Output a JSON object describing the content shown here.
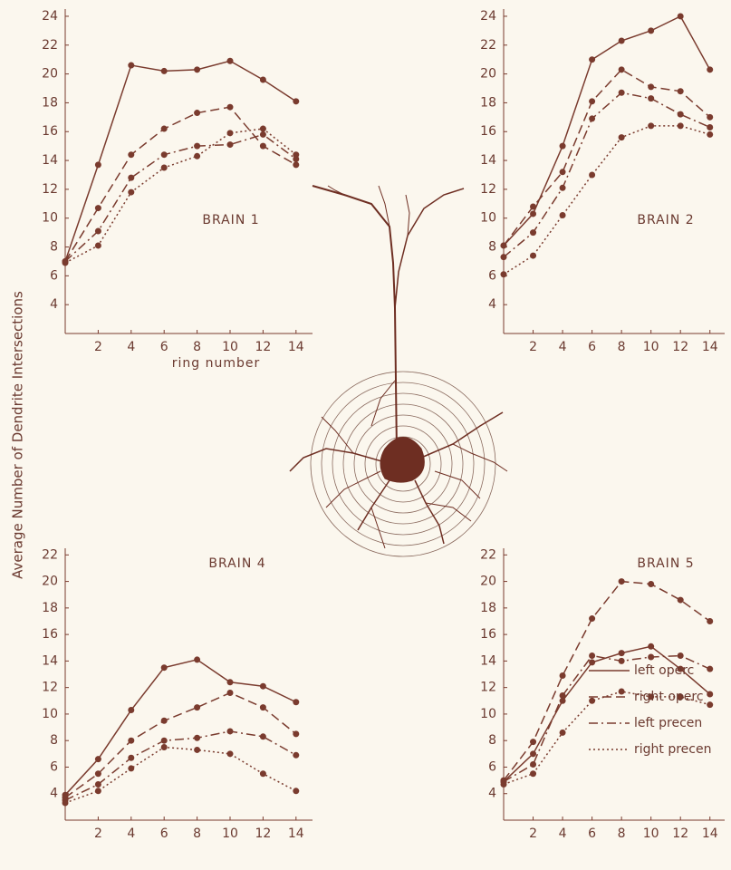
{
  "ylabel": "Average Number of Dendrite Intersections",
  "chart_data": [
    {
      "type": "line",
      "title": "BRAIN 1",
      "xlabel": "ring number",
      "x": [
        0,
        2,
        4,
        6,
        8,
        10,
        12,
        14
      ],
      "xlim": [
        0,
        15
      ],
      "xticks": [
        2,
        4,
        6,
        8,
        10,
        12,
        14
      ],
      "ylim": [
        2,
        24.5
      ],
      "yticks": [
        4,
        6,
        8,
        10,
        12,
        14,
        16,
        18,
        20,
        22,
        24
      ],
      "series": [
        {
          "name": "left operc",
          "color": "#7a3b2e",
          "dash": "solid",
          "values": [
            7,
            13.7,
            20.6,
            20.2,
            20.3,
            20.9,
            19.6,
            18.1
          ]
        },
        {
          "name": "right operc",
          "color": "#7a3b2e",
          "dash": "dashed",
          "values": [
            7,
            10.7,
            14.4,
            16.2,
            17.3,
            17.7,
            15.0,
            13.7
          ]
        },
        {
          "name": "left precen",
          "color": "#7a3b2e",
          "dash": "dashdot",
          "values": [
            7,
            9.1,
            12.8,
            14.4,
            15.0,
            15.1,
            15.8,
            14.1
          ]
        },
        {
          "name": "right precen",
          "color": "#7a3b2e",
          "dash": "dotted",
          "values": [
            6.9,
            8.1,
            11.8,
            13.5,
            14.3,
            15.9,
            16.2,
            14.4
          ]
        }
      ]
    },
    {
      "type": "line",
      "title": "BRAIN 2",
      "x": [
        0,
        2,
        4,
        6,
        8,
        10,
        12,
        14
      ],
      "xlim": [
        0,
        15
      ],
      "xticks": [
        2,
        4,
        6,
        8,
        10,
        12,
        14
      ],
      "ylim": [
        2,
        24.5
      ],
      "yticks": [
        4,
        6,
        8,
        10,
        12,
        14,
        16,
        18,
        20,
        22,
        24
      ],
      "series": [
        {
          "name": "left operc",
          "color": "#7a3b2e",
          "dash": "solid",
          "values": [
            8.1,
            10.3,
            15.0,
            21.0,
            22.3,
            23.0,
            24.0,
            20.3
          ]
        },
        {
          "name": "right operc",
          "color": "#7a3b2e",
          "dash": "dashed",
          "values": [
            8.1,
            10.8,
            13.2,
            18.1,
            20.3,
            19.1,
            18.8,
            17.0
          ]
        },
        {
          "name": "left precen",
          "color": "#7a3b2e",
          "dash": "dashdot",
          "values": [
            7.3,
            9.0,
            12.1,
            16.9,
            18.7,
            18.3,
            17.2,
            16.3
          ]
        },
        {
          "name": "right precen",
          "color": "#7a3b2e",
          "dash": "dotted",
          "values": [
            6.1,
            7.4,
            10.2,
            13.0,
            15.6,
            16.4,
            16.4,
            15.8
          ]
        }
      ]
    },
    {
      "type": "line",
      "title": "BRAIN 4",
      "x": [
        0,
        2,
        4,
        6,
        8,
        10,
        12,
        14
      ],
      "xlim": [
        0,
        15
      ],
      "xticks": [
        2,
        4,
        6,
        8,
        10,
        12,
        14
      ],
      "ylim": [
        2,
        22.5
      ],
      "yticks": [
        4,
        6,
        8,
        10,
        12,
        14,
        16,
        18,
        20,
        22
      ],
      "series": [
        {
          "name": "left operc",
          "color": "#7a3b2e",
          "dash": "solid",
          "values": [
            3.9,
            6.6,
            10.3,
            13.5,
            14.1,
            12.4,
            12.1,
            10.9
          ]
        },
        {
          "name": "right operc",
          "color": "#7a3b2e",
          "dash": "dashed",
          "values": [
            3.7,
            5.5,
            8.0,
            9.5,
            10.5,
            11.6,
            10.5,
            8.5
          ]
        },
        {
          "name": "left precen",
          "color": "#7a3b2e",
          "dash": "dashdot",
          "values": [
            3.5,
            4.7,
            6.7,
            8.0,
            8.2,
            8.7,
            8.3,
            6.9
          ]
        },
        {
          "name": "right precen",
          "color": "#7a3b2e",
          "dash": "dotted",
          "values": [
            3.3,
            4.2,
            5.9,
            7.5,
            7.3,
            7.0,
            5.5,
            4.2
          ]
        }
      ]
    },
    {
      "type": "line",
      "title": "BRAIN 5",
      "legend": "lower right",
      "x": [
        0,
        2,
        4,
        6,
        8,
        10,
        12,
        14
      ],
      "xlim": [
        0,
        15
      ],
      "xticks": [
        2,
        4,
        6,
        8,
        10,
        12,
        14
      ],
      "ylim": [
        2,
        22.5
      ],
      "yticks": [
        4,
        6,
        8,
        10,
        12,
        14,
        16,
        18,
        20,
        22
      ],
      "series": [
        {
          "name": "left operc",
          "color": "#7a3b2e",
          "dash": "solid",
          "values": [
            4.9,
            7.0,
            11.0,
            13.9,
            14.6,
            15.1,
            13.4,
            11.5
          ]
        },
        {
          "name": "right operc",
          "color": "#7a3b2e",
          "dash": "dashed",
          "values": [
            5.0,
            7.9,
            12.9,
            17.2,
            20.0,
            19.8,
            18.6,
            17.0
          ]
        },
        {
          "name": "left precen",
          "color": "#7a3b2e",
          "dash": "dashdot",
          "values": [
            4.9,
            6.2,
            11.4,
            14.4,
            14.0,
            14.3,
            14.4,
            13.4
          ]
        },
        {
          "name": "right precen",
          "color": "#7a3b2e",
          "dash": "dotted",
          "values": [
            4.7,
            5.5,
            8.6,
            11.0,
            11.7,
            11.3,
            11.3,
            10.7
          ]
        }
      ]
    }
  ]
}
